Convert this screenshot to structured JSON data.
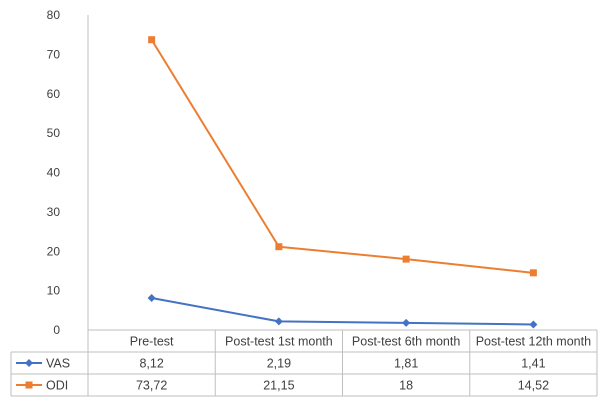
{
  "chart_data": {
    "type": "line",
    "title": "",
    "xlabel": "",
    "ylabel": "",
    "ylim": [
      0,
      80
    ],
    "yticks": [
      0,
      10,
      20,
      30,
      40,
      50,
      60,
      70,
      80
    ],
    "grid": false,
    "legend": "data-table-rows",
    "categories": [
      "Pre-test",
      "Post-test 1st month",
      "Post-test 6th month",
      "Post-test 12th month"
    ],
    "series": [
      {
        "name": "VAS",
        "values": [
          8.12,
          2.19,
          1.81,
          1.41
        ],
        "labels": [
          "8,12",
          "2,19",
          "1,81",
          "1,41"
        ],
        "color": "#4472C4",
        "marker": "diamond"
      },
      {
        "name": "ODI",
        "values": [
          73.72,
          21.15,
          18,
          14.52
        ],
        "labels": [
          "73,72",
          "21,15",
          "18",
          "14,52"
        ],
        "color": "#ED7D31",
        "marker": "square"
      }
    ]
  }
}
